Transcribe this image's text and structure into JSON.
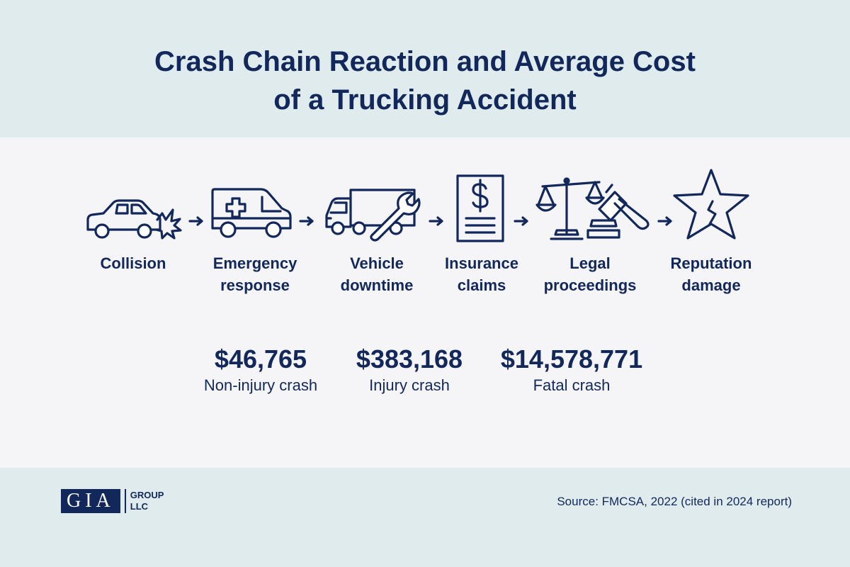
{
  "title": {
    "line1": "Crash Chain Reaction and Average Cost",
    "line2": "of a Trucking Accident"
  },
  "steps": [
    {
      "label_line1": "Collision",
      "label_line2": "",
      "icon": "car-crash-icon"
    },
    {
      "label_line1": "Emergency",
      "label_line2": "response",
      "icon": "ambulance-icon"
    },
    {
      "label_line1": "Vehicle",
      "label_line2": "downtime",
      "icon": "truck-wrench-icon"
    },
    {
      "label_line1": "Insurance",
      "label_line2": "claims",
      "icon": "dollar-document-icon"
    },
    {
      "label_line1": "Legal",
      "label_line2": "proceedings",
      "icon": "scales-gavel-icon"
    },
    {
      "label_line1": "Reputation",
      "label_line2": "damage",
      "icon": "broken-star-icon"
    }
  ],
  "costs": [
    {
      "value": "$46,765",
      "label": "Non-injury crash"
    },
    {
      "value": "$383,168",
      "label": "Injury crash"
    },
    {
      "value": "$14,578,771",
      "label": "Fatal crash"
    }
  ],
  "footer": {
    "logo_main": "GIA",
    "logo_sub1": "GROUP",
    "logo_sub2": "LLC",
    "source": "Source: FMCSA, 2022 (cited in 2024 report)"
  },
  "colors": {
    "navy": "#13285a",
    "band": "#e0ebee",
    "background": "#f5f5f8"
  }
}
